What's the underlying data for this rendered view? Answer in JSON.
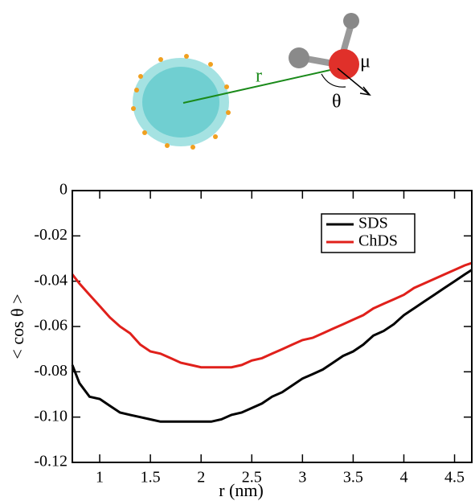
{
  "chart_data": {
    "type": "line",
    "annotations": [
      "r",
      "θ",
      "μ"
    ],
    "x_label": "r (nm)",
    "y_label": "< cos θ >",
    "x": [
      0.73,
      0.8,
      0.9,
      1.0,
      1.1,
      1.2,
      1.3,
      1.4,
      1.5,
      1.6,
      1.7,
      1.8,
      1.9,
      2.0,
      2.1,
      2.2,
      2.3,
      2.4,
      2.5,
      2.6,
      2.7,
      2.8,
      2.9,
      3.0,
      3.1,
      3.2,
      3.3,
      3.4,
      3.5,
      3.6,
      3.7,
      3.8,
      3.9,
      4.0,
      4.1,
      4.2,
      4.3,
      4.4,
      4.5,
      4.6,
      4.67
    ],
    "series": [
      {
        "name": "SDS",
        "color": "#000000",
        "values": [
          -0.077,
          -0.085,
          -0.091,
          -0.092,
          -0.095,
          -0.098,
          -0.099,
          -0.1,
          -0.101,
          -0.102,
          -0.102,
          -0.102,
          -0.102,
          -0.102,
          -0.102,
          -0.101,
          -0.099,
          -0.098,
          -0.096,
          -0.094,
          -0.091,
          -0.089,
          -0.086,
          -0.083,
          -0.081,
          -0.079,
          -0.076,
          -0.073,
          -0.071,
          -0.068,
          -0.064,
          -0.062,
          -0.059,
          -0.055,
          -0.052,
          -0.049,
          -0.046,
          -0.043,
          -0.04,
          -0.037,
          -0.035
        ]
      },
      {
        "name": "ChDS",
        "color": "#e0201b",
        "values": [
          -0.037,
          -0.041,
          -0.046,
          -0.051,
          -0.056,
          -0.06,
          -0.063,
          -0.068,
          -0.071,
          -0.072,
          -0.074,
          -0.076,
          -0.077,
          -0.078,
          -0.078,
          -0.078,
          -0.078,
          -0.077,
          -0.075,
          -0.074,
          -0.072,
          -0.07,
          -0.068,
          -0.066,
          -0.065,
          -0.063,
          -0.061,
          -0.059,
          -0.057,
          -0.055,
          -0.052,
          -0.05,
          -0.048,
          -0.046,
          -0.043,
          -0.041,
          -0.039,
          -0.037,
          -0.035,
          -0.033,
          -0.032
        ]
      }
    ],
    "xlim": [
      0.73,
      4.67
    ],
    "xticks": [
      1,
      1.5,
      2,
      2.5,
      3,
      3.5,
      4,
      4.5
    ],
    "ylim": [
      -0.12,
      0
    ],
    "yticks": [
      -0.12,
      {
        "value": -0.1,
        "label": "-0.10"
      },
      -0.08,
      -0.06,
      -0.04,
      -0.02,
      0
    ],
    "legend": "upper-right"
  }
}
